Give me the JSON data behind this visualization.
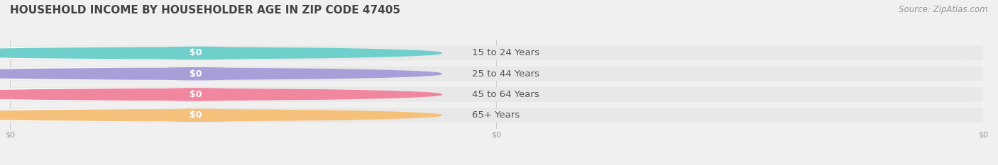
{
  "title": "HOUSEHOLD INCOME BY HOUSEHOLDER AGE IN ZIP CODE 47405",
  "source": "Source: ZipAtlas.com",
  "categories": [
    "15 to 24 Years",
    "25 to 44 Years",
    "45 to 64 Years",
    "65+ Years"
  ],
  "values": [
    0,
    0,
    0,
    0
  ],
  "bar_colors": [
    "#6ecfcb",
    "#a89fd8",
    "#f0879f",
    "#f5c07a"
  ],
  "bg_color": "#f0f0f0",
  "bar_bg_color": "#e8e8e8",
  "pill_bg_color": "#f8f8f8",
  "xlim_data": [
    0,
    1
  ],
  "title_fontsize": 11,
  "label_fontsize": 9.5,
  "value_fontsize": 9,
  "source_fontsize": 8.5
}
